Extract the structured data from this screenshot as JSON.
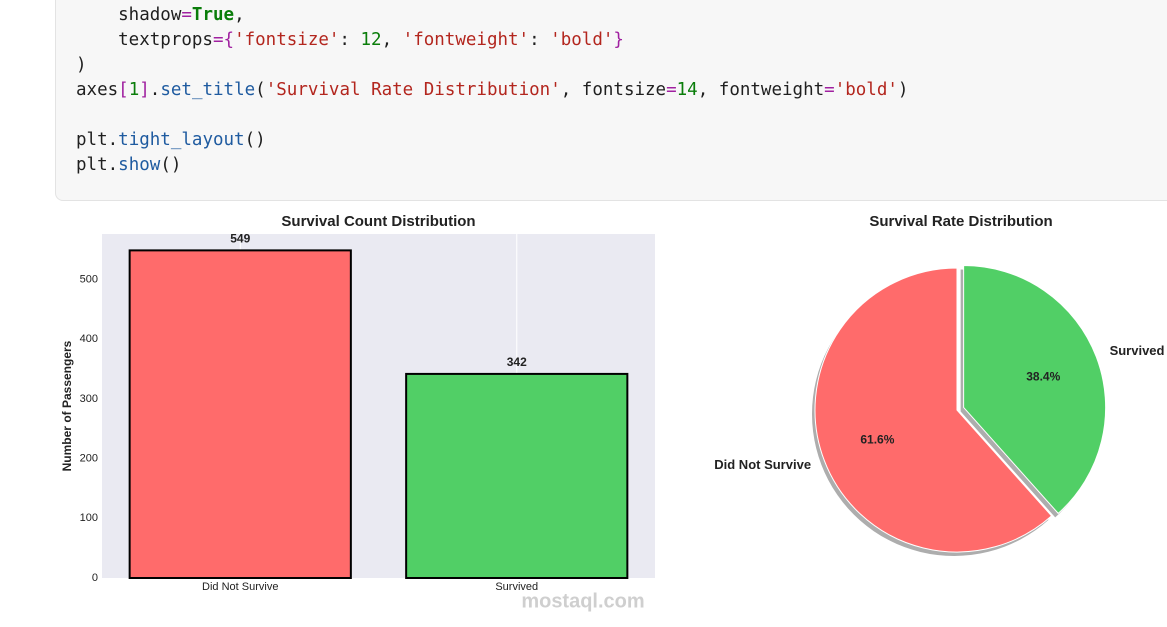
{
  "code": {
    "lines": [
      [
        {
          "text": "    shadow",
          "color": "#1f1f1f"
        },
        {
          "text": "=",
          "color": "#a020a0"
        },
        {
          "text": "True",
          "color": "#0a7d0a",
          "bold": true
        },
        {
          "text": ",",
          "color": "#1f1f1f"
        }
      ],
      [
        {
          "text": "    textprops",
          "color": "#1f1f1f"
        },
        {
          "text": "=",
          "color": "#a020a0"
        },
        {
          "text": "{",
          "color": "#a020a0"
        },
        {
          "text": "'fontsize'",
          "color": "#b3261e"
        },
        {
          "text": ": ",
          "color": "#1f1f1f"
        },
        {
          "text": "12",
          "color": "#0a7d0a"
        },
        {
          "text": ", ",
          "color": "#1f1f1f"
        },
        {
          "text": "'fontweight'",
          "color": "#b3261e"
        },
        {
          "text": ": ",
          "color": "#1f1f1f"
        },
        {
          "text": "'bold'",
          "color": "#b3261e"
        },
        {
          "text": "}",
          "color": "#a020a0"
        }
      ],
      [
        {
          "text": ")",
          "color": "#1f1f1f"
        }
      ],
      [
        {
          "text": "axes",
          "color": "#1f1f1f"
        },
        {
          "text": "[",
          "color": "#a020a0"
        },
        {
          "text": "1",
          "color": "#0a7d0a"
        },
        {
          "text": "]",
          "color": "#a020a0"
        },
        {
          "text": ".",
          "color": "#1f1f1f"
        },
        {
          "text": "set_title",
          "color": "#1f5ba0"
        },
        {
          "text": "(",
          "color": "#1f1f1f"
        },
        {
          "text": "'Survival Rate Distribution'",
          "color": "#b3261e"
        },
        {
          "text": ", fontsize",
          "color": "#1f1f1f"
        },
        {
          "text": "=",
          "color": "#a020a0"
        },
        {
          "text": "14",
          "color": "#0a7d0a"
        },
        {
          "text": ", fontweight",
          "color": "#1f1f1f"
        },
        {
          "text": "=",
          "color": "#a020a0"
        },
        {
          "text": "'bold'",
          "color": "#b3261e"
        },
        {
          "text": ")",
          "color": "#1f1f1f"
        }
      ],
      [],
      [
        {
          "text": "plt",
          "color": "#1f1f1f"
        },
        {
          "text": ".",
          "color": "#1f1f1f"
        },
        {
          "text": "tight_layout",
          "color": "#1f5ba0"
        },
        {
          "text": "()",
          "color": "#1f1f1f"
        }
      ],
      [
        {
          "text": "plt",
          "color": "#1f1f1f"
        },
        {
          "text": ".",
          "color": "#1f1f1f"
        },
        {
          "text": "show",
          "color": "#1f5ba0"
        },
        {
          "text": "()",
          "color": "#1f1f1f"
        }
      ]
    ]
  },
  "chart_data": [
    {
      "type": "bar",
      "title": "Survival Count Distribution",
      "ylabel": "Number of Passengers",
      "categories": [
        "Did Not Survive",
        "Survived"
      ],
      "values": [
        549,
        342
      ],
      "colors": [
        "#ff6b6b",
        "#51cf66"
      ],
      "edgecolor": "#000000",
      "ylim": [
        0,
        576.45
      ],
      "yticks": [
        0,
        100,
        200,
        300,
        400,
        500
      ],
      "grid": true
    },
    {
      "type": "pie",
      "title": "Survival Rate Distribution",
      "categories": [
        "Did Not Survive",
        "Survived"
      ],
      "values": [
        61.6,
        38.4
      ],
      "value_labels": [
        "61.6%",
        "38.4%"
      ],
      "colors": [
        "#ff6b6b",
        "#51cf66"
      ],
      "startangle": 90,
      "explode": [
        0,
        0.05
      ],
      "shadow": true
    }
  ],
  "watermark": "mostaql.com"
}
